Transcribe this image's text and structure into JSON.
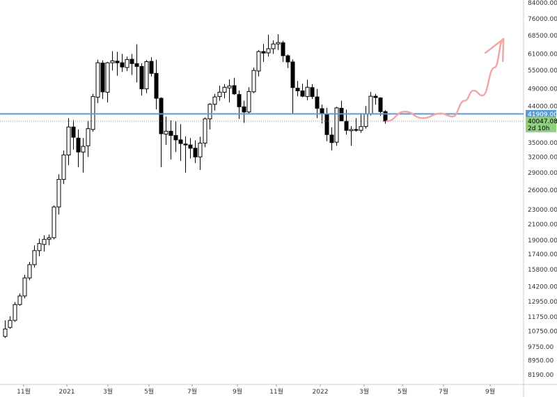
{
  "chart_data": {
    "type": "candlestick",
    "scale": "log",
    "price_axis": {
      "min": 7700,
      "max": 84000,
      "ticks": [
        "84000.00",
        "76000.00",
        "68500.00",
        "61000.00",
        "55000.00",
        "49000.00",
        "44000.00",
        "40000.00",
        "35000.00",
        "32000.00",
        "29000.00",
        "26000.00",
        "23000.00",
        "21000.00",
        "19000.00",
        "17400.00",
        "15800.00",
        "14200.00",
        "12950.00",
        "11750.00",
        "10750.00",
        "9750.00",
        "8950.00",
        "8190.00"
      ]
    },
    "time_axis_labels": [
      "11월",
      "2021",
      "3월",
      "5월",
      "7월",
      "9월",
      "11월",
      "2022",
      "3월",
      "5월",
      "7월",
      "9월"
    ],
    "horizontal_line": {
      "value": 41909.0,
      "label": "41909.00",
      "color": "#5b9bd5"
    },
    "current_price": {
      "value": 40047.08,
      "label": "40047.08",
      "countdown": "2d 10h",
      "color": "#8fd17f"
    },
    "candles": [
      [
        10400,
        11500,
        10300,
        10900
      ],
      [
        11000,
        11800,
        10900,
        11500
      ],
      [
        11500,
        12900,
        11400,
        12700
      ],
      [
        12700,
        13600,
        12600,
        13400
      ],
      [
        13400,
        15300,
        13200,
        15000
      ],
      [
        15000,
        16600,
        14800,
        16300
      ],
      [
        16300,
        18400,
        16000,
        17800
      ],
      [
        17800,
        19200,
        17200,
        18600
      ],
      [
        18500,
        19600,
        17700,
        19100
      ],
      [
        19100,
        19700,
        18400,
        19300
      ],
      [
        19300,
        23600,
        19100,
        23400
      ],
      [
        23400,
        28700,
        22300,
        27800
      ],
      [
        27800,
        33300,
        27000,
        32400
      ],
      [
        32400,
        40800,
        30400,
        38600
      ],
      [
        38600,
        40300,
        33500,
        36200
      ],
      [
        36000,
        38000,
        30000,
        33000
      ],
      [
        33000,
        36000,
        29000,
        34200
      ],
      [
        34300,
        40200,
        32000,
        38200
      ],
      [
        38000,
        47500,
        37500,
        46700
      ],
      [
        46500,
        58800,
        44800,
        57700
      ],
      [
        57600,
        58600,
        46000,
        48100
      ],
      [
        48000,
        58000,
        45000,
        57700
      ],
      [
        57700,
        62000,
        55000,
        58400
      ],
      [
        58300,
        61800,
        53200,
        57700
      ],
      [
        57700,
        61000,
        54500,
        56200
      ],
      [
        56000,
        60000,
        54800,
        58900
      ],
      [
        59000,
        61000,
        53500,
        57400
      ],
      [
        57400,
        64800,
        51000,
        56400
      ],
      [
        56400,
        57500,
        47000,
        49000
      ],
      [
        49000,
        58700,
        47700,
        58100
      ],
      [
        58200,
        59700,
        53000,
        54000
      ],
      [
        54000,
        58800,
        43100,
        46200
      ],
      [
        46200,
        46500,
        30000,
        37000
      ],
      [
        36900,
        41200,
        34500,
        37600
      ],
      [
        37600,
        40200,
        31500,
        36600
      ],
      [
        36600,
        40100,
        33000,
        35600
      ],
      [
        35600,
        39300,
        31200,
        34800
      ],
      [
        34700,
        36400,
        29000,
        34500
      ],
      [
        34500,
        36000,
        31700,
        33800
      ],
      [
        33800,
        35500,
        30800,
        32000
      ],
      [
        32000,
        36300,
        29500,
        34900
      ],
      [
        34900,
        41000,
        34000,
        40600
      ],
      [
        40600,
        44800,
        38000,
        44500
      ],
      [
        44500,
        47500,
        42800,
        46600
      ],
      [
        46700,
        50000,
        45500,
        48000
      ],
      [
        48000,
        50500,
        46200,
        49500
      ],
      [
        49300,
        52000,
        45000,
        49900
      ],
      [
        50000,
        52500,
        47200,
        47500
      ],
      [
        47300,
        48500,
        40600,
        43800
      ],
      [
        43800,
        45500,
        39600,
        42400
      ],
      [
        42400,
        49500,
        42000,
        48200
      ],
      [
        48100,
        56000,
        47700,
        55000
      ],
      [
        54800,
        62500,
        53000,
        61900
      ],
      [
        61900,
        64900,
        58000,
        61300
      ],
      [
        61400,
        68800,
        60000,
        63000
      ],
      [
        63000,
        66400,
        61000,
        64900
      ],
      [
        64900,
        69000,
        62500,
        65500
      ],
      [
        65400,
        66200,
        58000,
        60300
      ],
      [
        60300,
        60800,
        55800,
        58000
      ],
      [
        58000,
        58900,
        42000,
        49400
      ],
      [
        49200,
        51500,
        46800,
        48400
      ],
      [
        48400,
        50600,
        46500,
        46800
      ],
      [
        46700,
        51900,
        45600,
        49500
      ],
      [
        49400,
        50500,
        46000,
        46700
      ],
      [
        46600,
        49000,
        40800,
        43400
      ],
      [
        43300,
        44400,
        39500,
        42000
      ],
      [
        41800,
        43500,
        35300,
        36800
      ],
      [
        36700,
        38500,
        33300,
        35000
      ],
      [
        35100,
        43800,
        34300,
        43500
      ],
      [
        43400,
        45500,
        40000,
        40100
      ],
      [
        40000,
        43000,
        36800,
        37800
      ],
      [
        37700,
        38800,
        34300,
        38000
      ],
      [
        38000,
        40800,
        37500,
        37800
      ],
      [
        37800,
        42100,
        37200,
        38700
      ],
      [
        38700,
        44000,
        38200,
        41900
      ],
      [
        41900,
        48100,
        41500,
        46800
      ],
      [
        46800,
        47500,
        44400,
        46400
      ],
      [
        46300,
        46500,
        41400,
        42500
      ],
      [
        42500,
        42900,
        39400,
        40047
      ]
    ],
    "projection": {
      "color": "#f2a7a7",
      "points": [
        [
          0,
          40047
        ],
        [
          6,
          42500
        ],
        [
          12,
          40800
        ],
        [
          18,
          42000
        ],
        [
          22,
          41200
        ],
        [
          26,
          45500
        ],
        [
          29,
          48500
        ],
        [
          32,
          47000
        ],
        [
          36,
          56000
        ],
        [
          39,
          67000
        ]
      ],
      "arrow_head": true
    }
  }
}
